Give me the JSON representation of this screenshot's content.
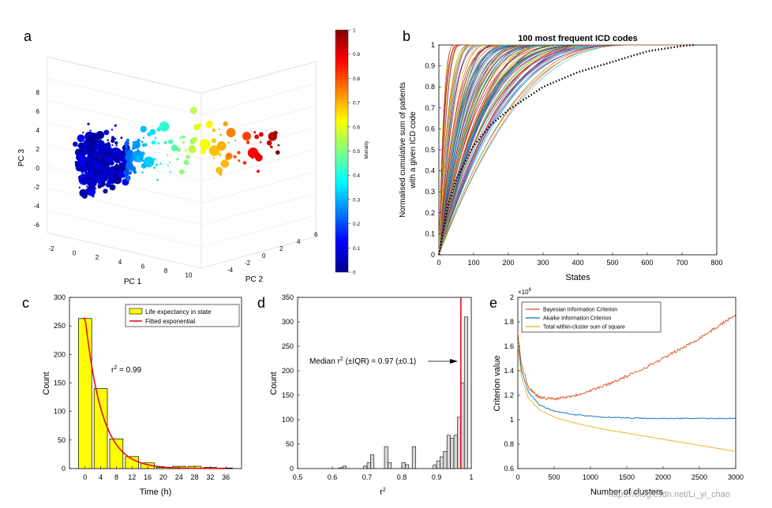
{
  "panel_labels": [
    "a",
    "b",
    "c",
    "d",
    "e"
  ],
  "watermark": "https://blog.csdn.net/Li_yi_chao",
  "chart_data": [
    {
      "panel": "a",
      "type": "scatter",
      "subtype": "3d-scatter",
      "xlabel": "PC 1",
      "ylabel": "PC 2",
      "zlabel": "PC 3",
      "x_ticks": [
        "-2",
        "0",
        "2",
        "4",
        "6",
        "8",
        "10"
      ],
      "y_ticks": [
        "-4",
        "-2",
        "0",
        "2",
        "4",
        "6"
      ],
      "z_ticks": [
        "-6",
        "-4",
        "-2",
        "0",
        "2",
        "4",
        "6",
        "8"
      ],
      "colorbar": {
        "label": "Mortality",
        "ticks": [
          "0",
          "0.1",
          "0.2",
          "0.3",
          "0.4",
          "0.5",
          "0.6",
          "0.7",
          "0.8",
          "0.9",
          "1"
        ],
        "range": [
          0,
          1
        ],
        "colormap": [
          "#00008f",
          "#0000ff",
          "#0080ff",
          "#00ffff",
          "#80ff80",
          "#ffff00",
          "#ff8000",
          "#ff0000",
          "#800000"
        ]
      },
      "grid": true
    },
    {
      "panel": "b",
      "type": "line",
      "title": "100 most frequent ICD codes",
      "xlabel": "States",
      "ylabel_lines": [
        "Normalised cumulative sum of patients",
        "with a given ICD code"
      ],
      "xlim": [
        0,
        800
      ],
      "ylim": [
        0,
        1
      ],
      "x_ticks": [
        "0",
        "100",
        "200",
        "300",
        "400",
        "500",
        "600",
        "700",
        "800"
      ],
      "y_ticks": [
        "0",
        "0.1",
        "0.2",
        "0.3",
        "0.4",
        "0.5",
        "0.6",
        "0.7",
        "0.8",
        "0.9",
        "1"
      ],
      "series_count": 100,
      "reference_curve": {
        "style": "dotted",
        "color": "#000000",
        "x_end": 735,
        "points": [
          [
            0,
            0
          ],
          [
            25,
            0.23
          ],
          [
            50,
            0.36
          ],
          [
            100,
            0.52
          ],
          [
            150,
            0.62
          ],
          [
            200,
            0.69
          ],
          [
            300,
            0.8
          ],
          [
            400,
            0.87
          ],
          [
            500,
            0.92
          ],
          [
            600,
            0.97
          ],
          [
            700,
            0.995
          ],
          [
            735,
            1
          ]
        ]
      },
      "line_colors": [
        "#0072bd",
        "#d95319",
        "#edb120",
        "#7e2f8e",
        "#77ac30",
        "#4dbeee",
        "#a2142f"
      ]
    },
    {
      "panel": "c",
      "type": "bar",
      "xlabel": "Time (h)",
      "ylabel": "Count",
      "ylim": [
        0,
        300
      ],
      "x_ticks": [
        "0",
        "4",
        "8",
        "12",
        "16",
        "20",
        "24",
        "28",
        "32",
        "36"
      ],
      "y_ticks": [
        "0",
        "50",
        "100",
        "150",
        "200",
        "250",
        "300"
      ],
      "categories": [
        "0",
        "4",
        "8",
        "12",
        "16",
        "20",
        "24",
        "28",
        "32",
        "36"
      ],
      "values": [
        263,
        140,
        52,
        21,
        10,
        2,
        4,
        4,
        2,
        1
      ],
      "fit": {
        "name": "Fitted exponential",
        "color": "#e0101a",
        "a": 265,
        "b": 0.23
      },
      "legend": [
        "Life expectancy in state",
        "Fitted exponential"
      ],
      "annotation": {
        "base": "r",
        "sup": "2",
        "rest": " = 0.99"
      },
      "bar_color": "#ffff00"
    },
    {
      "panel": "d",
      "type": "bar",
      "subtype": "histogram",
      "xlabel": "r",
      "xlabel_sup": "2",
      "ylabel": "Count",
      "xlim": [
        0.5,
        1
      ],
      "ylim": [
        0,
        350
      ],
      "x_ticks": [
        "0.5",
        "0.6",
        "0.7",
        "0.8",
        "0.9",
        "1"
      ],
      "y_ticks": [
        "0",
        "50",
        "100",
        "150",
        "200",
        "250",
        "300",
        "350"
      ],
      "bins": [
        [
          0.62,
          0.63,
          2
        ],
        [
          0.63,
          0.64,
          5
        ],
        [
          0.69,
          0.7,
          5
        ],
        [
          0.7,
          0.71,
          12
        ],
        [
          0.71,
          0.72,
          28
        ],
        [
          0.75,
          0.76,
          45
        ],
        [
          0.76,
          0.77,
          12
        ],
        [
          0.8,
          0.81,
          12
        ],
        [
          0.81,
          0.82,
          8
        ],
        [
          0.83,
          0.84,
          45
        ],
        [
          0.89,
          0.9,
          7
        ],
        [
          0.9,
          0.91,
          15
        ],
        [
          0.91,
          0.92,
          24
        ],
        [
          0.92,
          0.93,
          35
        ],
        [
          0.93,
          0.94,
          68
        ],
        [
          0.94,
          0.95,
          62
        ],
        [
          0.95,
          0.96,
          68
        ],
        [
          0.96,
          0.97,
          105
        ],
        [
          0.97,
          0.98,
          175
        ],
        [
          0.98,
          0.99,
          310
        ]
      ],
      "median_line": 0.97,
      "annotation": {
        "pre": "Median r",
        "sup": "2",
        "post": " (±IQR) = 0.97 (±0.1)"
      },
      "line_color": "#e0101a",
      "bar_color": "#d8d8d8"
    },
    {
      "panel": "e",
      "type": "line",
      "xlabel": "Number of clusters",
      "ylabel": "Criterion value",
      "exponent_label": "×10",
      "exponent_sup": "6",
      "xlim": [
        0,
        3000
      ],
      "ylim": [
        0.6,
        2
      ],
      "x_ticks": [
        "0",
        "500",
        "1000",
        "1500",
        "2000",
        "2500",
        "3000"
      ],
      "y_ticks": [
        "0.6",
        "0.8",
        "1",
        "1.2",
        "1.4",
        "1.6",
        "1.8",
        "2"
      ],
      "series": [
        {
          "name": "Bayesian Information Criterion",
          "color": "#d95319",
          "points": [
            [
              0,
              1.72
            ],
            [
              50,
              1.45
            ],
            [
              150,
              1.26
            ],
            [
              300,
              1.18
            ],
            [
              500,
              1.17
            ],
            [
              800,
              1.2
            ],
            [
              1200,
              1.28
            ],
            [
              1600,
              1.38
            ],
            [
              2000,
              1.5
            ],
            [
              2400,
              1.63
            ],
            [
              2700,
              1.74
            ],
            [
              3000,
              1.86
            ]
          ]
        },
        {
          "name": "Akaike Information Criterion",
          "color": "#0072bd",
          "points": [
            [
              0,
              1.65
            ],
            [
              50,
              1.4
            ],
            [
              150,
              1.22
            ],
            [
              300,
              1.12
            ],
            [
              500,
              1.07
            ],
            [
              800,
              1.04
            ],
            [
              1200,
              1.02
            ],
            [
              1800,
              1.01
            ],
            [
              2400,
              1.01
            ],
            [
              3000,
              1.01
            ]
          ]
        },
        {
          "name": "Total within-cluster sum of square",
          "color": "#edb120",
          "points": [
            [
              0,
              1.62
            ],
            [
              50,
              1.35
            ],
            [
              150,
              1.17
            ],
            [
              300,
              1.08
            ],
            [
              500,
              1.02
            ],
            [
              800,
              0.97
            ],
            [
              1200,
              0.92
            ],
            [
              1800,
              0.86
            ],
            [
              2400,
              0.8
            ],
            [
              3000,
              0.74
            ]
          ]
        }
      ]
    }
  ]
}
